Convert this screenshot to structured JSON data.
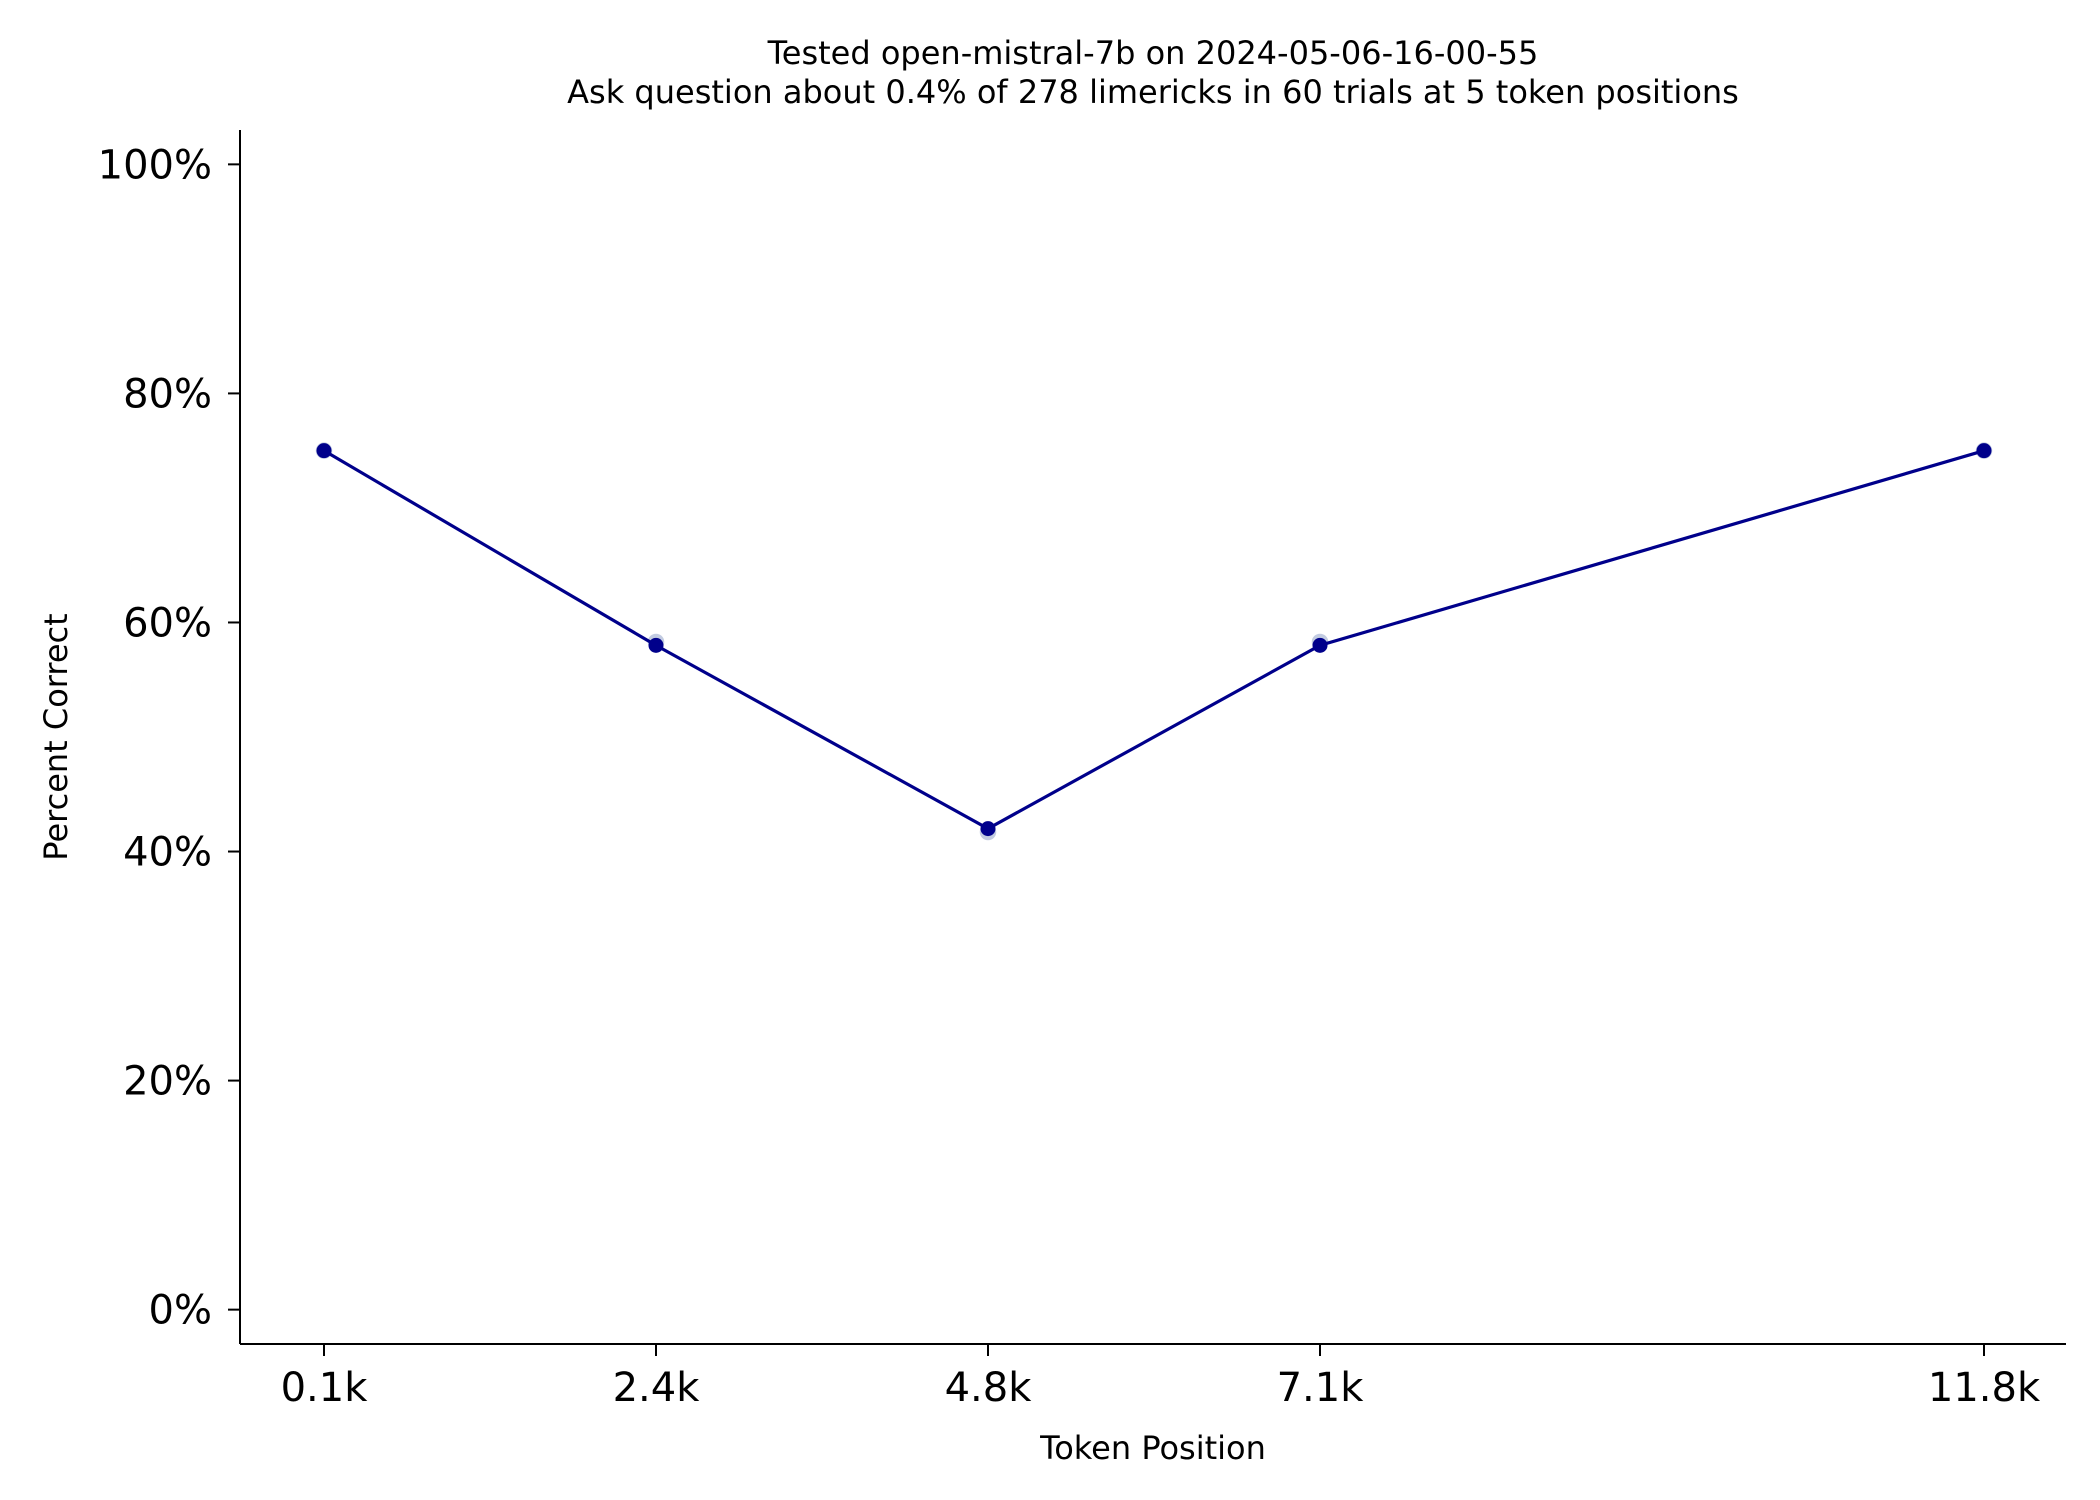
{
  "chart_data": {
    "type": "line",
    "title": "Tested open-mistral-7b on 2024-05-06-16-00-55",
    "subtitle": "Ask question about 0.4% of 278 limericks in 60 trials at 5 token positions",
    "xlabel": "Token Position",
    "ylabel": "Percent Correct",
    "x": [
      100,
      2400,
      4800,
      7100,
      11800
    ],
    "x_tick_labels": [
      "0.1k",
      "2.4k",
      "4.8k",
      "7.1k",
      "11.8k"
    ],
    "xlim": [
      -500,
      12400
    ],
    "y_ticks": [
      0,
      20,
      40,
      60,
      80,
      100
    ],
    "y_tick_labels": [
      "0%",
      "20%",
      "40%",
      "60%",
      "80%",
      "100%"
    ],
    "ylim": [
      -3,
      103
    ],
    "grid": false,
    "series": [
      {
        "values": [
          75,
          58,
          42,
          58,
          75
        ],
        "color": "#00008b"
      }
    ],
    "trial_points": {
      "values": [
        75,
        58.3,
        41.7,
        58.3,
        75
      ],
      "color": "#8fa0c8"
    }
  }
}
